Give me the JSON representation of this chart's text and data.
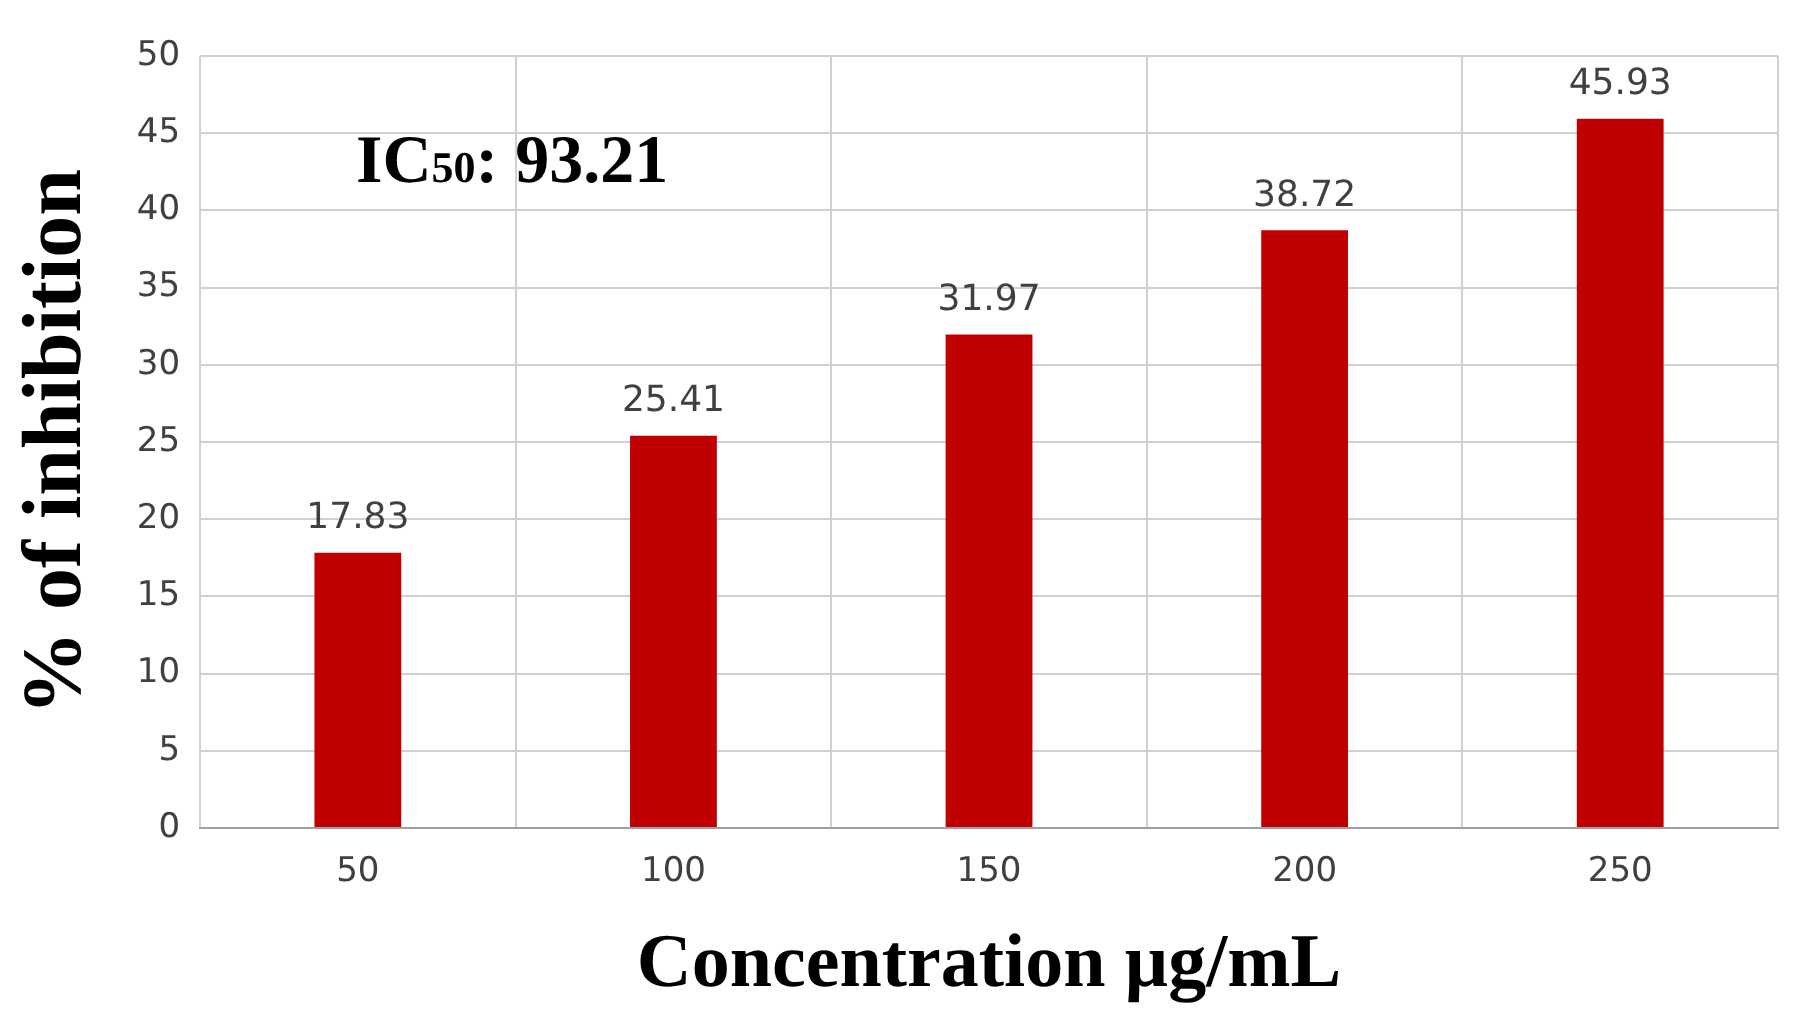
{
  "chart_data": {
    "type": "bar",
    "xlabel": "Concentration µg/mL",
    "ylabel": "% of inhibition",
    "categories": [
      "50",
      "100",
      "150",
      "200",
      "250"
    ],
    "values": [
      17.83,
      25.41,
      31.97,
      38.72,
      45.93
    ],
    "color": "#c00000",
    "ylim": [
      0,
      50
    ],
    "yticks": [
      0,
      5,
      10,
      15,
      20,
      25,
      30,
      35,
      40,
      45,
      50
    ],
    "grid": true,
    "data_labels": true,
    "annotations": [
      "IC$_{50}$: 93.21"
    ]
  }
}
